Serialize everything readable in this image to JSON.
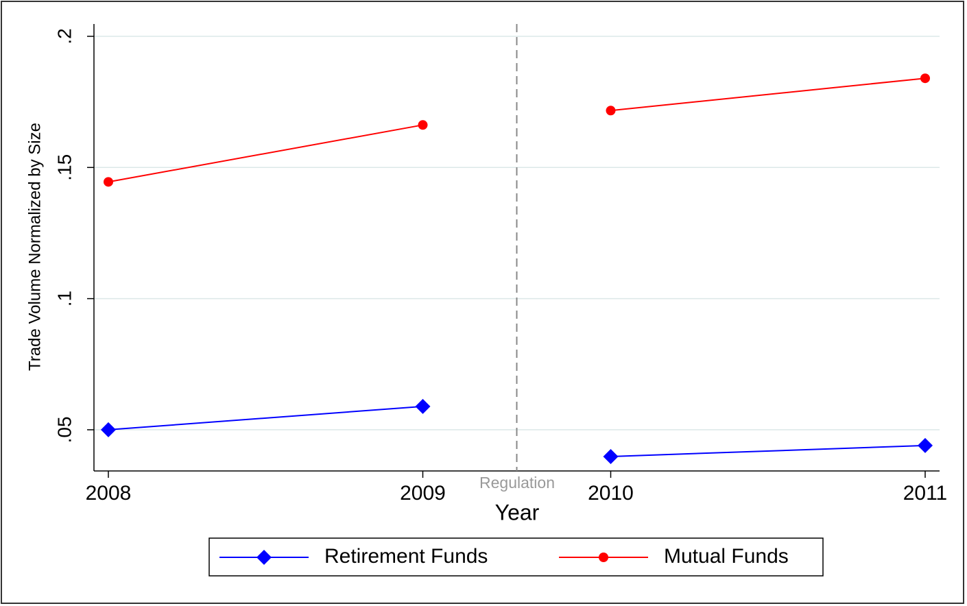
{
  "chart_data": {
    "type": "line",
    "y_label": "Trade Volume Normalized by Size",
    "x_label": "Year",
    "annotation": "Regulation",
    "categories": [
      "2008",
      "2009",
      "2010",
      "2011"
    ],
    "series": [
      {
        "name": "Retirement Funds",
        "color": "#0000ff",
        "marker": "diamond",
        "values": [
          0.05,
          0.0589,
          0.0398,
          0.044
        ]
      },
      {
        "name": "Mutual Funds",
        "color": "#ff0000",
        "marker": "circle",
        "values": [
          0.1445,
          0.1662,
          0.1717,
          0.184
        ]
      }
    ],
    "ylim": [
      0.0343,
      0.2047
    ],
    "yticks": [
      {
        "value": 0.05,
        "label": ".05"
      },
      {
        "value": 0.1,
        "label": ".1"
      },
      {
        "value": 0.15,
        "label": ".15"
      },
      {
        "value": 0.2,
        "label": ".2"
      }
    ],
    "grid": true,
    "legend": "bottom"
  }
}
